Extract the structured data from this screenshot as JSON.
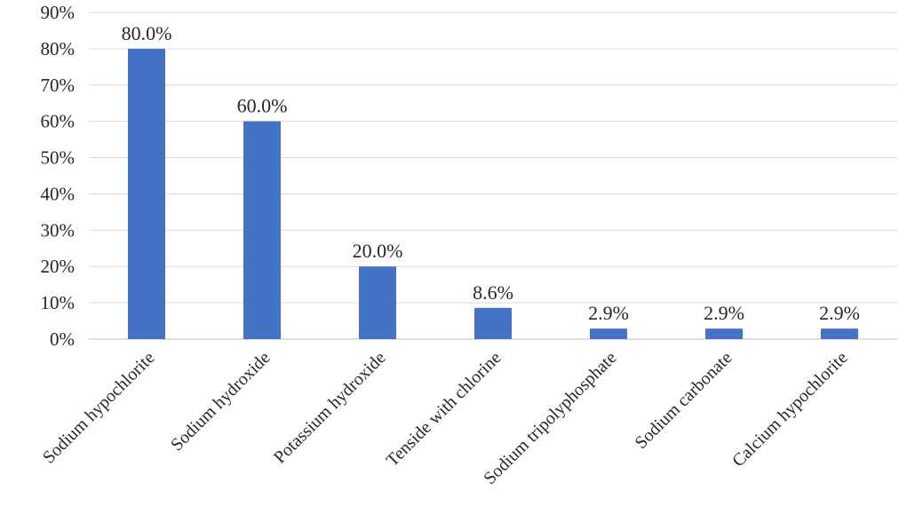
{
  "chart_data": {
    "type": "bar",
    "title": "",
    "xlabel": "",
    "ylabel": "",
    "categories": [
      "Sodium hypochlorite",
      "Sodium hydroxide",
      "Potassium hydroxide",
      "Tenside with chlorine",
      "Sodium tripolyphosphate",
      "Sodium carbonate",
      "Calcium hypochlorite"
    ],
    "values": [
      80.0,
      60.0,
      20.0,
      8.6,
      2.9,
      2.9,
      2.9
    ],
    "data_labels": [
      "80.0%",
      "60.0%",
      "20.0%",
      "8.6%",
      "2.9%",
      "2.9%",
      "2.9%"
    ],
    "ylim": [
      0,
      90
    ],
    "yticks": [
      0,
      10,
      20,
      30,
      40,
      50,
      60,
      70,
      80,
      90
    ],
    "ytick_labels": [
      "0%",
      "10%",
      "20%",
      "30%",
      "40%",
      "50%",
      "60%",
      "70%",
      "80%",
      "90%"
    ],
    "grid": true,
    "legend": "none",
    "colors": {
      "bar": "#4472C4",
      "grid": "#D9D9D9",
      "text": "#262626"
    }
  }
}
